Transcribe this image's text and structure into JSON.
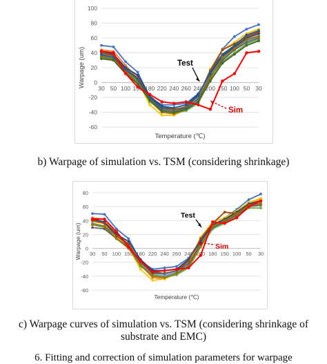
{
  "captions": {
    "b": "b) Warpage of simulation vs. TSM (considering shrinkage)",
    "c_line1": "c) Warpage curves of simulation vs. TSM (considering shrinkage of",
    "c_line2": "substrate and EMC)",
    "footer_partial": "6.  Fitting and correction of simulation parameters for warpage"
  },
  "chart_data": [
    {
      "type": "line",
      "title": "",
      "xlabel": "Temperature (℃)",
      "ylabel": "Warpage (um)",
      "categories": [
        "30",
        "50",
        "100",
        "150",
        "180",
        "220",
        "240",
        "260",
        "240",
        "200",
        "150",
        "100",
        "50",
        "30"
      ],
      "ylim": [
        -60,
        100
      ],
      "yticks": [
        -60,
        -40,
        -20,
        0,
        20,
        40,
        60,
        80,
        100
      ],
      "grid": true,
      "annotations": [
        {
          "text": "Test",
          "color": "#000000"
        },
        {
          "text": "Sim",
          "color": "#e00000"
        }
      ],
      "series": [
        {
          "color": "#4472c4",
          "values": [
            50,
            48,
            28,
            14,
            -20,
            -30,
            -30,
            -28,
            -15,
            10,
            45,
            62,
            72,
            78
          ]
        },
        {
          "color": "#ed7d31",
          "values": [
            44,
            42,
            23,
            6,
            -25,
            -40,
            -42,
            -35,
            -22,
            13,
            38,
            50,
            62,
            70
          ]
        },
        {
          "color": "#a5a5a5",
          "values": [
            40,
            38,
            20,
            6,
            -22,
            -35,
            -38,
            -32,
            -20,
            10,
            34,
            46,
            58,
            64
          ]
        },
        {
          "color": "#ffc000",
          "values": [
            38,
            36,
            16,
            2,
            -30,
            -44,
            -44,
            -36,
            -22,
            18,
            44,
            54,
            66,
            72
          ]
        },
        {
          "color": "#5b9bd5",
          "values": [
            36,
            32,
            18,
            4,
            -24,
            -38,
            -40,
            -35,
            -24,
            8,
            32,
            44,
            56,
            62
          ]
        },
        {
          "color": "#70ad47",
          "values": [
            34,
            30,
            14,
            2,
            -26,
            -38,
            -42,
            -38,
            -28,
            4,
            28,
            40,
            52,
            58
          ]
        },
        {
          "color": "#264478",
          "values": [
            42,
            38,
            20,
            10,
            -18,
            -32,
            -34,
            -30,
            -16,
            12,
            36,
            48,
            60,
            66
          ]
        },
        {
          "color": "#9e480e",
          "values": [
            40,
            36,
            18,
            6,
            -20,
            -34,
            -36,
            -33,
            -18,
            16,
            44,
            52,
            62,
            68
          ]
        },
        {
          "color": "#636363",
          "values": [
            36,
            34,
            16,
            4,
            -22,
            -36,
            -38,
            -34,
            -22,
            8,
            30,
            44,
            54,
            60
          ]
        },
        {
          "color": "#997300",
          "values": [
            34,
            32,
            14,
            0,
            -24,
            -40,
            -42,
            -36,
            -26,
            6,
            34,
            46,
            58,
            62
          ]
        },
        {
          "color": "#255e91",
          "values": [
            38,
            34,
            18,
            4,
            -20,
            -34,
            -34,
            -30,
            -18,
            14,
            38,
            50,
            64,
            70
          ]
        },
        {
          "color": "#43682b",
          "values": [
            32,
            30,
            12,
            -2,
            -24,
            -38,
            -40,
            -36,
            -26,
            2,
            26,
            38,
            50,
            56
          ]
        },
        {
          "color": "#ff0000",
          "values": [
            42,
            40,
            12,
            -6,
            -16,
            -26,
            -28,
            -26,
            -30,
            -36,
            2,
            12,
            40,
            42
          ]
        }
      ]
    },
    {
      "type": "line",
      "title": "",
      "xlabel": "Temperature (℃)",
      "ylabel": "Warpage (um)",
      "categories": [
        "30",
        "50",
        "100",
        "150",
        "180",
        "220",
        "240",
        "260",
        "240",
        "200",
        "180",
        "150",
        "100",
        "50",
        "30"
      ],
      "ylim": [
        -60,
        80
      ],
      "yticks": [
        -60,
        -40,
        -20,
        0,
        20,
        40,
        60,
        80
      ],
      "grid": true,
      "annotations": [
        {
          "text": "Test",
          "color": "#000000"
        },
        {
          "text": "Sim",
          "color": "#e00000"
        }
      ],
      "series": [
        {
          "color": "#4472c4",
          "values": [
            50,
            49,
            28,
            14,
            -18,
            -30,
            -28,
            -26,
            -14,
            12,
            38,
            44,
            56,
            70,
            78
          ]
        },
        {
          "color": "#ed7d31",
          "values": [
            44,
            42,
            22,
            6,
            -24,
            -42,
            -44,
            -36,
            -22,
            6,
            34,
            42,
            52,
            64,
            70
          ]
        },
        {
          "color": "#a5a5a5",
          "values": [
            40,
            38,
            18,
            4,
            -22,
            -36,
            -38,
            -32,
            -20,
            8,
            32,
            40,
            50,
            62,
            66
          ]
        },
        {
          "color": "#ffc000",
          "values": [
            38,
            36,
            16,
            2,
            -30,
            -46,
            -44,
            -36,
            -22,
            16,
            38,
            44,
            54,
            66,
            72
          ]
        },
        {
          "color": "#5b9bd5",
          "values": [
            36,
            32,
            18,
            4,
            -24,
            -38,
            -40,
            -34,
            -24,
            6,
            30,
            38,
            48,
            60,
            64
          ]
        },
        {
          "color": "#70ad47",
          "values": [
            34,
            30,
            14,
            2,
            -26,
            -38,
            -42,
            -38,
            -28,
            2,
            28,
            36,
            46,
            58,
            58
          ]
        },
        {
          "color": "#264478",
          "values": [
            42,
            38,
            20,
            10,
            -16,
            -32,
            -32,
            -30,
            -16,
            10,
            34,
            42,
            52,
            64,
            68
          ]
        },
        {
          "color": "#9e480e",
          "values": [
            40,
            36,
            18,
            6,
            -20,
            -34,
            -36,
            -32,
            -18,
            14,
            36,
            52,
            50,
            62,
            68
          ]
        },
        {
          "color": "#636363",
          "values": [
            30,
            28,
            14,
            2,
            -20,
            -36,
            -36,
            -32,
            -22,
            6,
            30,
            38,
            48,
            60,
            62
          ]
        },
        {
          "color": "#997300",
          "values": [
            34,
            32,
            14,
            0,
            -24,
            -40,
            -42,
            -36,
            -26,
            4,
            32,
            40,
            50,
            62,
            64
          ]
        },
        {
          "color": "#ff0000",
          "values": [
            42,
            42,
            24,
            2,
            -18,
            -34,
            -32,
            -30,
            -28,
            -10,
            38,
            36,
            44,
            60,
            68
          ]
        }
      ]
    }
  ]
}
